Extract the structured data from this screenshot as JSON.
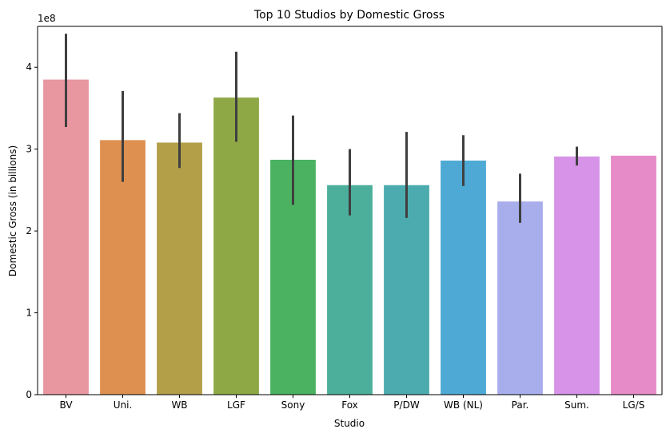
{
  "chart_data": {
    "type": "bar",
    "title": "Top 10 Studios by Domestic Gross",
    "xlabel": "Studio",
    "ylabel": "Domestic Gross (in billions)",
    "y_offset_label": "1e8",
    "ylim": [
      0,
      4.5
    ],
    "yticks": [
      "0",
      "1",
      "2",
      "3",
      "4"
    ],
    "grid": false,
    "legend": "none",
    "categories": [
      "BV",
      "Uni.",
      "WB",
      "LGF",
      "Sony",
      "Fox",
      "P/DW",
      "WB (NL)",
      "Par.",
      "Sum.",
      "LG/S"
    ],
    "values": [
      3.85,
      3.11,
      3.08,
      3.63,
      2.87,
      2.56,
      2.56,
      2.86,
      2.36,
      2.91,
      2.92
    ],
    "error_low": [
      3.27,
      2.6,
      2.77,
      3.09,
      2.32,
      2.19,
      2.16,
      2.55,
      2.1,
      2.8,
      2.92
    ],
    "error_high": [
      4.41,
      3.71,
      3.44,
      4.19,
      3.41,
      3.0,
      3.21,
      3.17,
      2.7,
      3.03,
      2.92
    ],
    "colors": [
      "#e8969f",
      "#dd904f",
      "#b29f48",
      "#8fa846",
      "#4bb262",
      "#4caf9c",
      "#4cabaf",
      "#4fa9d5",
      "#a8aeec",
      "#d693e8",
      "#e78ac8"
    ]
  }
}
